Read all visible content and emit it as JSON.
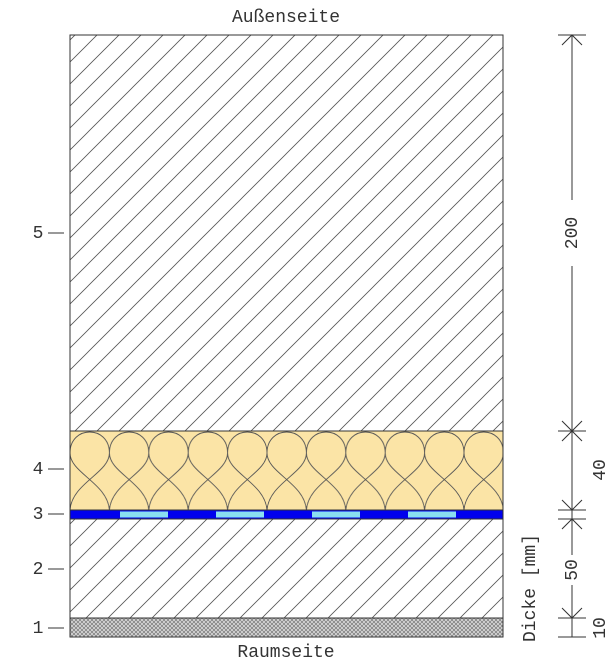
{
  "top_label": "Außenseite",
  "bottom_label": "Raumseite",
  "layer_labels": [
    "1",
    "2",
    "3",
    "4",
    "5"
  ],
  "dimensions": [
    200,
    40,
    50,
    10
  ],
  "axis_label": "Dicke [mm]"
}
